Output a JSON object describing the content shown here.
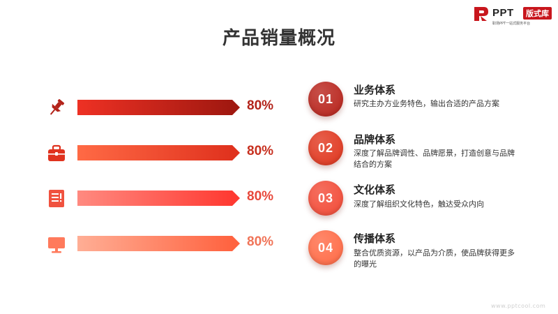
{
  "slide": {
    "title": "产品销量概况",
    "watermark": "www.pptcool.com"
  },
  "logo": {
    "name": "PPT",
    "badge": "版式库",
    "tagline": "职场PPT一站式服务平台"
  },
  "bars": [
    {
      "icon": "pushpin-icon",
      "value": 80,
      "label": "80%",
      "color_start": "#ee3124",
      "color_end": "#a01810",
      "label_color": "#b3231a"
    },
    {
      "icon": "briefcase-icon",
      "value": 80,
      "label": "80%",
      "color_start": "#ff6a45",
      "color_end": "#e0321e",
      "label_color": "#c7301f"
    },
    {
      "icon": "document-icon",
      "value": 80,
      "label": "80%",
      "color_start": "#ff8a80",
      "color_end": "#ff3a32",
      "label_color": "#e8483b"
    },
    {
      "icon": "monitor-icon",
      "value": 80,
      "label": "80%",
      "color_start": "#ffae95",
      "color_end": "#ff6340",
      "label_color": "#f07458"
    }
  ],
  "items": [
    {
      "number": "01",
      "title": "业务体系",
      "description": "研究主办方业务特色，输出合适的产品方案",
      "color": "#b8231b"
    },
    {
      "number": "02",
      "title": "品牌体系",
      "description": "深度了解品牌调性、品牌愿景，打造创意与品牌结合的方案",
      "color": "#e0361e"
    },
    {
      "number": "03",
      "title": "文化体系",
      "description": "深度了解组织文化特色，触达受众内向",
      "color": "#f24a36"
    },
    {
      "number": "04",
      "title": "传播体系",
      "description": "整合优质资源，以产品为介质，使品牌获得更多的曝光",
      "color": "#ff6a45"
    }
  ]
}
